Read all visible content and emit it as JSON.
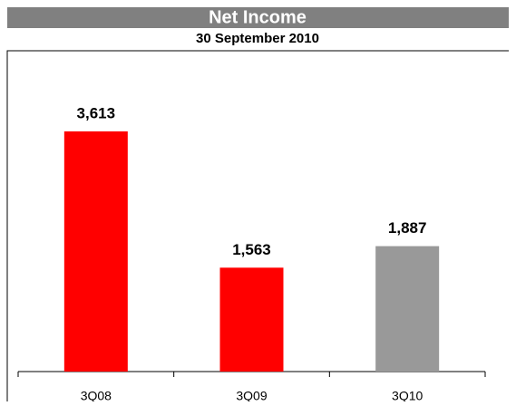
{
  "chart_data": {
    "type": "bar",
    "title": "Net Income",
    "subtitle": "30 September 2010",
    "categories": [
      "3Q08",
      "3Q09",
      "3Q10"
    ],
    "values": [
      3613,
      1563,
      1887
    ],
    "value_labels": [
      "3,613",
      "1,563",
      "1,887"
    ],
    "colors": [
      "#ff0000",
      "#ff0000",
      "#999999"
    ]
  }
}
